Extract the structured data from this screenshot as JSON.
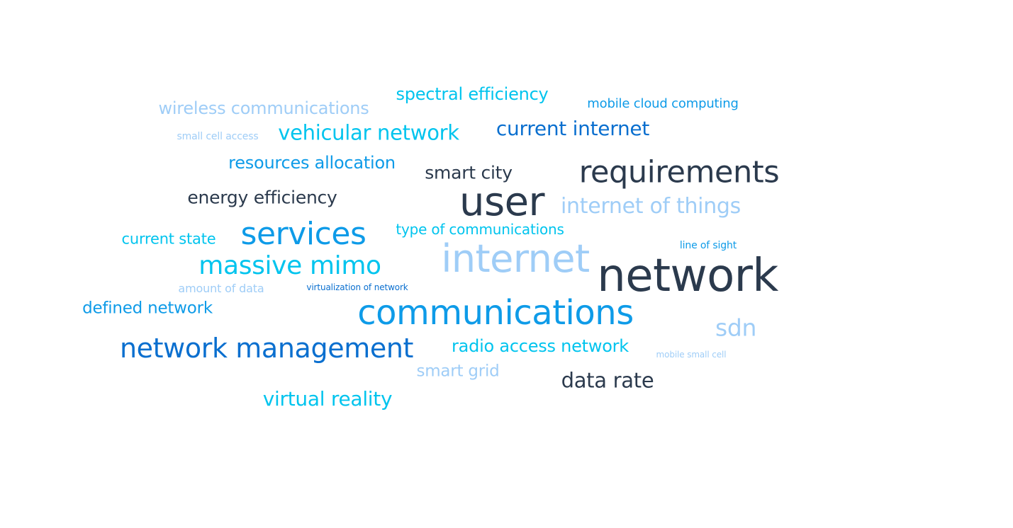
{
  "palette": {
    "dark": "#2b3a4d",
    "blue": "#0a6fcf",
    "azure": "#0e9be8",
    "cyan": "#00c4ee",
    "light": "#9fcdf7"
  },
  "words": [
    {
      "key": "network",
      "text": "network",
      "color": "#2b3a4d"
    },
    {
      "key": "communications",
      "text": "communications",
      "color": "#0e9be8"
    },
    {
      "key": "internet",
      "text": "internet",
      "color": "#9fcdf7"
    },
    {
      "key": "user",
      "text": "user",
      "color": "#2b3a4d"
    },
    {
      "key": "requirements",
      "text": "requirements",
      "color": "#2b3a4d"
    },
    {
      "key": "network-management",
      "text": "network management",
      "color": "#0a6fcf"
    },
    {
      "key": "services",
      "text": "services",
      "color": "#0e9be8"
    },
    {
      "key": "massive-mimo",
      "text": "massive mimo",
      "color": "#00c4ee"
    },
    {
      "key": "sdn",
      "text": "sdn",
      "color": "#9fcdf7"
    },
    {
      "key": "internet-of-things",
      "text": "internet of things",
      "color": "#9fcdf7"
    },
    {
      "key": "vehicular-network",
      "text": "vehicular network",
      "color": "#00c4ee"
    },
    {
      "key": "current-internet",
      "text": "current internet",
      "color": "#0a6fcf"
    },
    {
      "key": "data-rate",
      "text": "data rate",
      "color": "#2b3a4d"
    },
    {
      "key": "virtual-reality",
      "text": "virtual reality",
      "color": "#00c4ee"
    },
    {
      "key": "resources-allocation",
      "text": "resources allocation",
      "color": "#0e9be8"
    },
    {
      "key": "smart-city",
      "text": "smart city",
      "color": "#2b3a4d"
    },
    {
      "key": "energy-efficiency",
      "text": "energy efficiency",
      "color": "#2b3a4d"
    },
    {
      "key": "spectral-efficiency",
      "text": "spectral efficiency",
      "color": "#00c4ee"
    },
    {
      "key": "wireless-communications",
      "text": "wireless communications",
      "color": "#9fcdf7"
    },
    {
      "key": "radio-access-network",
      "text": "radio access network",
      "color": "#00c4ee"
    },
    {
      "key": "smart-grid",
      "text": "smart grid",
      "color": "#9fcdf7"
    },
    {
      "key": "defined-network",
      "text": "defined network",
      "color": "#0e9be8"
    },
    {
      "key": "current-state",
      "text": "current state",
      "color": "#00c4ee"
    },
    {
      "key": "type-of-communications",
      "text": "type of communications",
      "color": "#00c4ee"
    },
    {
      "key": "mobile-cloud-computing",
      "text": "mobile cloud computing",
      "color": "#0e9be8"
    },
    {
      "key": "amount-of-data",
      "text": "amount of data",
      "color": "#9fcdf7"
    },
    {
      "key": "line-of-sight",
      "text": "line of sight",
      "color": "#0e9be8"
    },
    {
      "key": "small-cell-access",
      "text": "small cell access",
      "color": "#9fcdf7"
    },
    {
      "key": "virtualization-of-network",
      "text": "virtualization of network",
      "color": "#0a6fcf"
    },
    {
      "key": "mobile-small-cell",
      "text": "mobile small cell",
      "color": "#9fcdf7"
    }
  ]
}
